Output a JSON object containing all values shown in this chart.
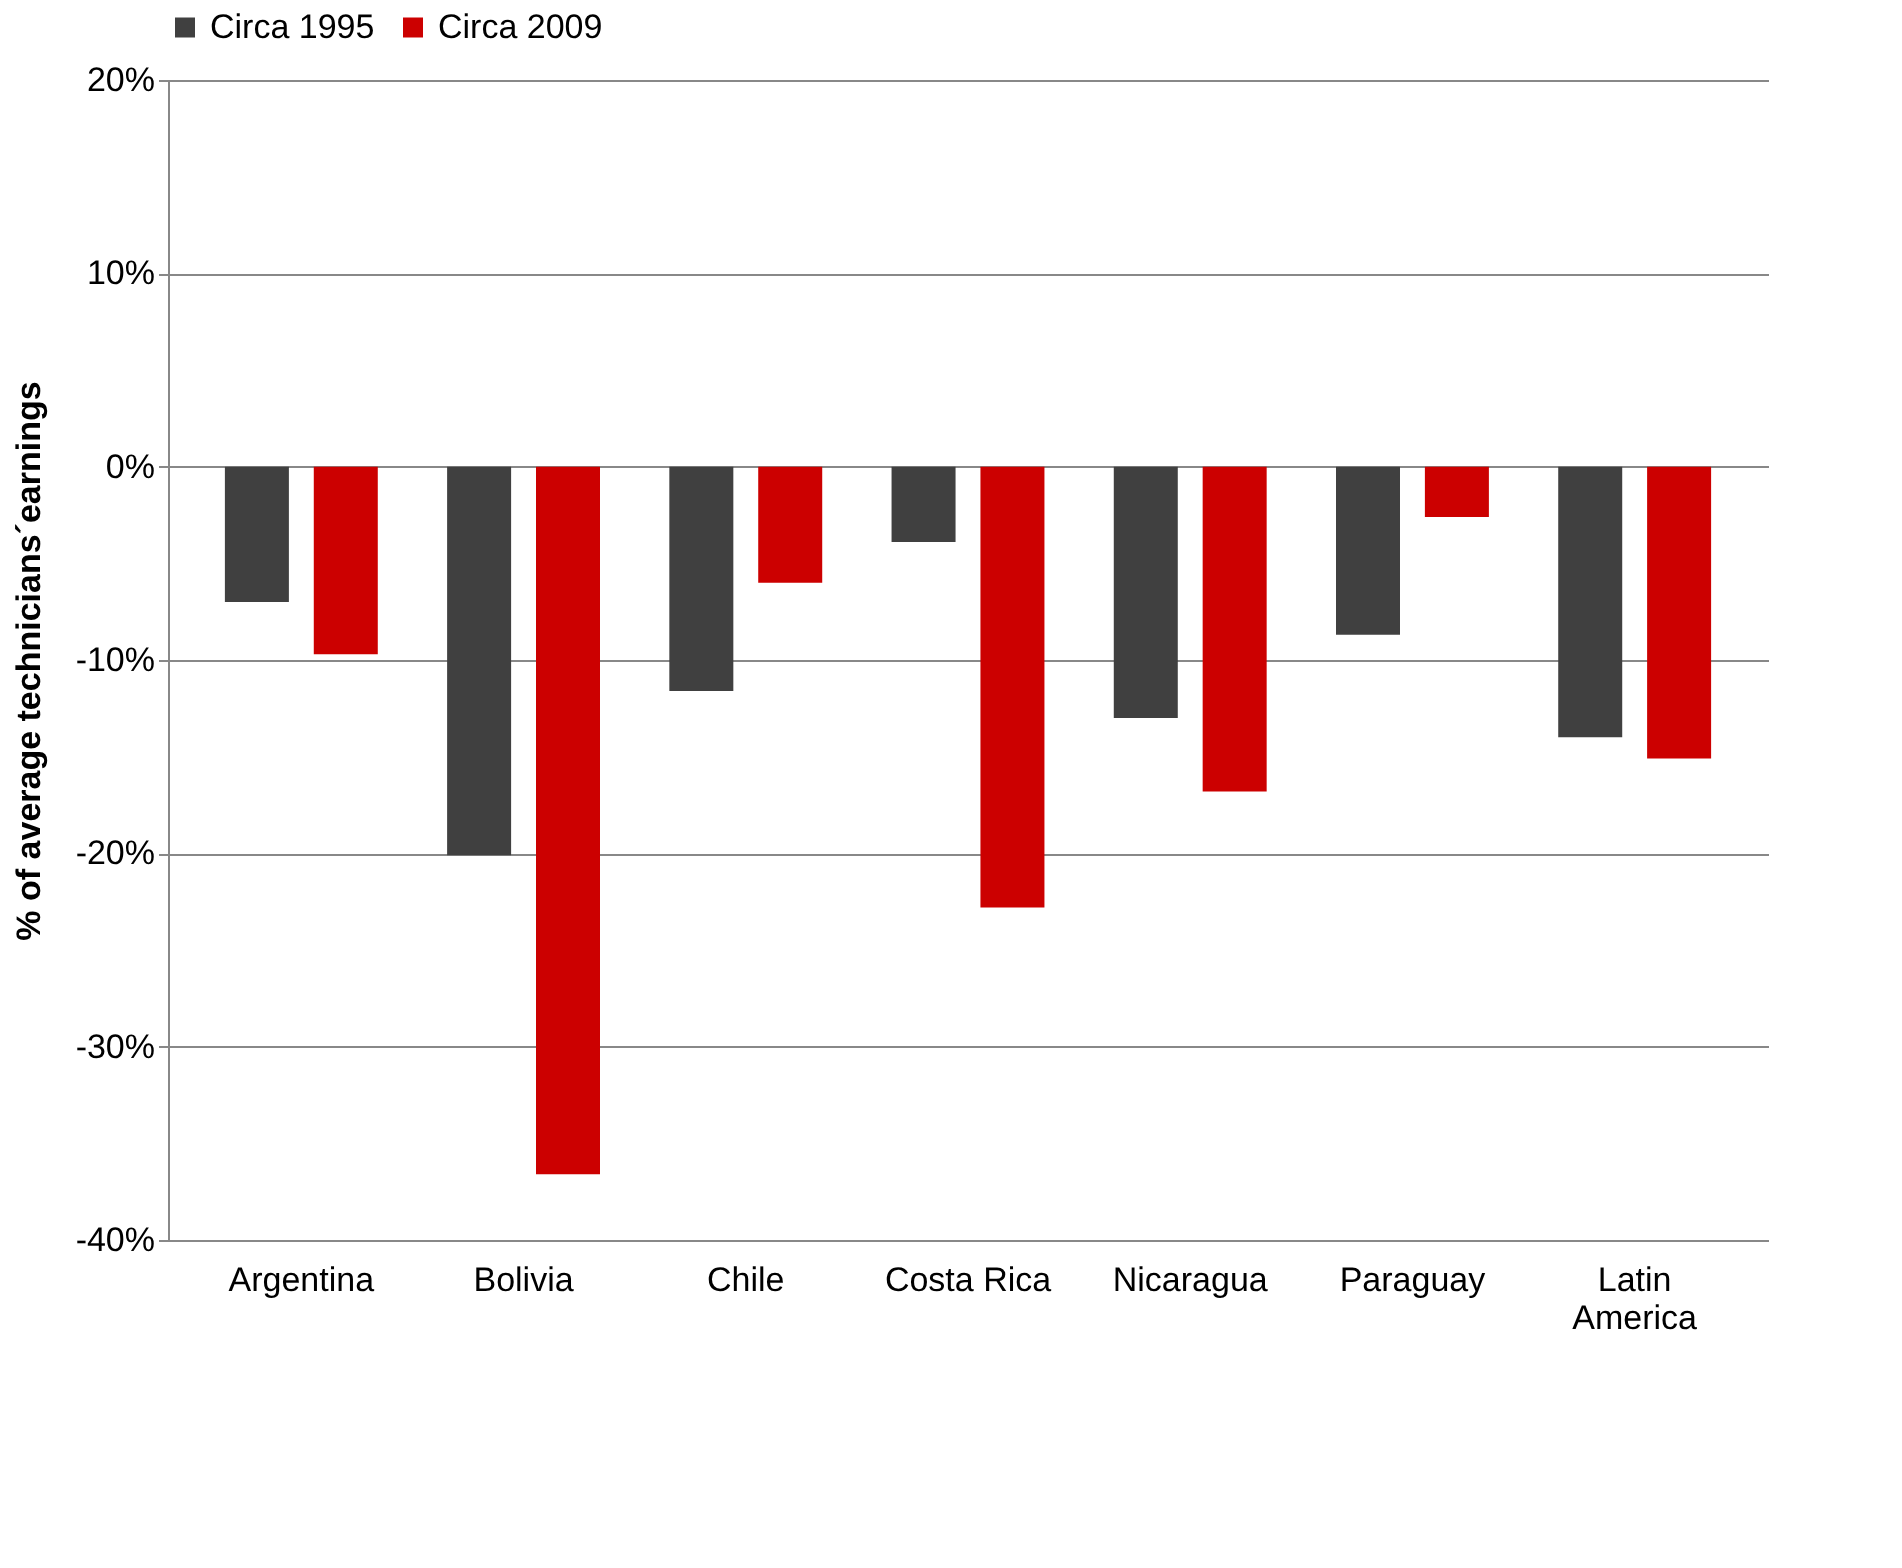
{
  "chart_data": {
    "type": "bar",
    "ylabel": "% of average technicians´earnings",
    "categories": [
      "Argentina",
      "Bolivia",
      "Chile",
      "Costa Rica",
      "Nicaragua",
      "Paraguay",
      "Latin America"
    ],
    "series": [
      {
        "name": "Circa 1995",
        "color": "#404040",
        "values": [
          -7.0,
          -20.1,
          -11.6,
          -3.9,
          -13.0,
          -8.7,
          -14.0
        ]
      },
      {
        "name": "Circa 2009",
        "color": "#cc0000",
        "values": [
          -9.7,
          -36.6,
          -6.0,
          -22.8,
          -16.8,
          -2.6,
          -15.1
        ]
      }
    ],
    "ylim": [
      -40,
      20
    ],
    "yticks": [
      {
        "value": -40,
        "label": "-40%"
      },
      {
        "value": -30,
        "label": "-30%"
      },
      {
        "value": -20,
        "label": "-20%"
      },
      {
        "value": -10,
        "label": "-10%"
      },
      {
        "value": 0,
        "label": "0%"
      },
      {
        "value": 10,
        "label": "10%"
      },
      {
        "value": 20,
        "label": "20%"
      }
    ],
    "grid": "y",
    "legend": "top"
  }
}
